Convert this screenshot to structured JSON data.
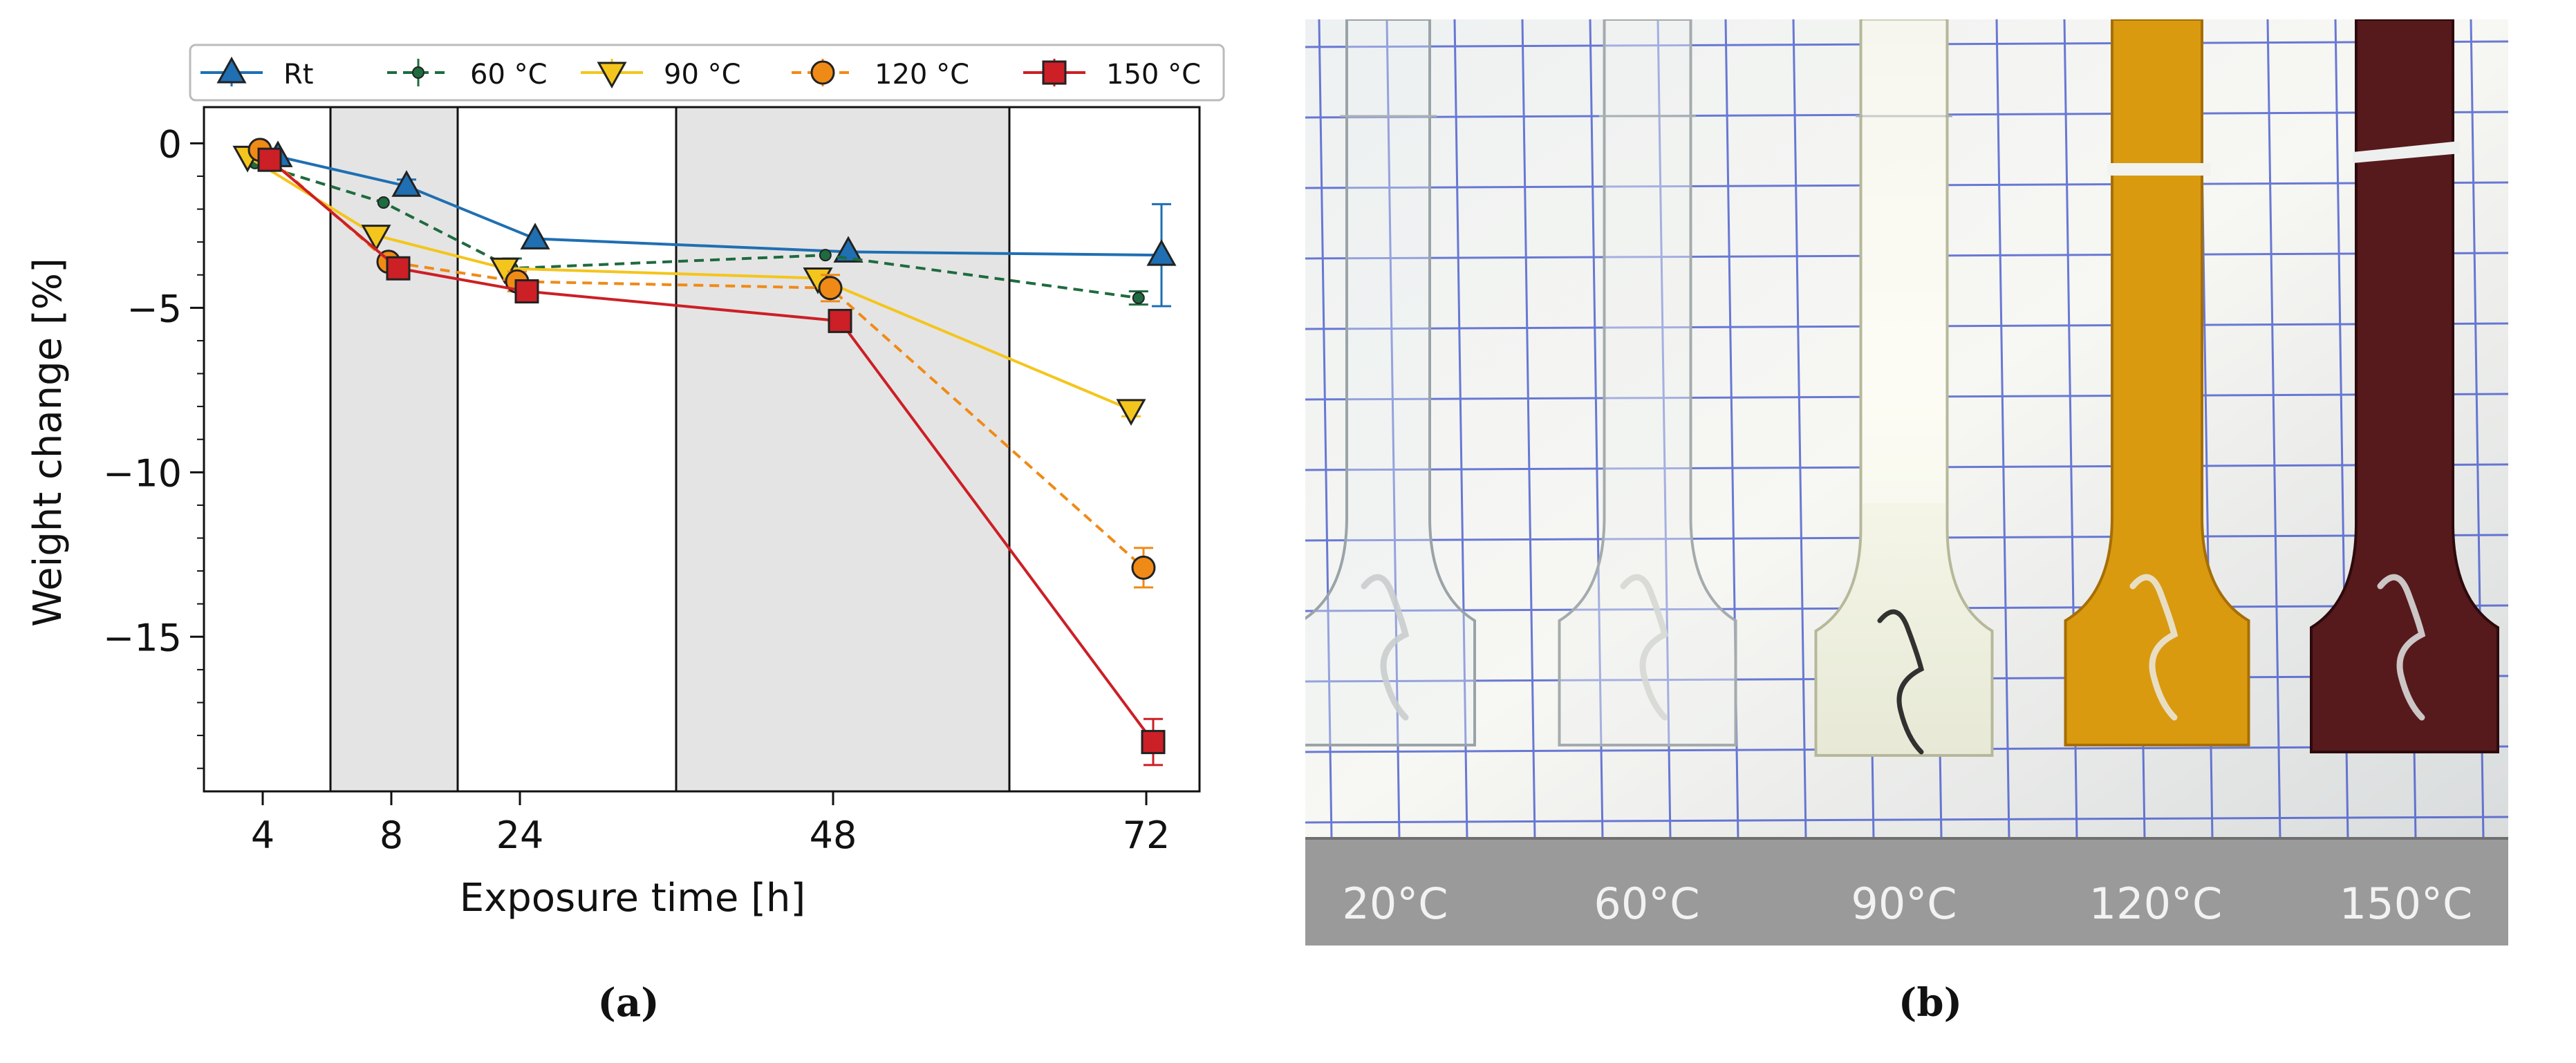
{
  "chart_data": {
    "type": "line",
    "xlabel": "Exposure time [h]",
    "ylabel": "Weight change [%]",
    "x_ticks": [
      "4",
      "8",
      "24",
      "48",
      "72"
    ],
    "y_ticks": [
      0,
      -5,
      -10,
      -15
    ],
    "ylim": [
      -19.7,
      1.1
    ],
    "legend_placement": "top",
    "shaded_bands": [
      [
        "8",
        "24"
      ],
      [
        "48",
        "72"
      ]
    ],
    "series": [
      {
        "name": "Rt",
        "marker": "triangle-up",
        "line": "solid",
        "color": "#1f6fb2",
        "points": [
          {
            "x": "4",
            "y": -0.4
          },
          {
            "x": "8",
            "y": -1.3,
            "err": 0.2
          },
          {
            "x": "24",
            "y": -2.9
          },
          {
            "x": "48",
            "y": -3.3
          },
          {
            "x": "72",
            "y": -3.4,
            "err": 1.55
          }
        ]
      },
      {
        "name": "60 °C",
        "marker": "circle-small",
        "line": "dashed",
        "color": "#1e6b3f",
        "points": [
          {
            "x": "4",
            "y": -0.6
          },
          {
            "x": "8",
            "y": -1.8
          },
          {
            "x": "24",
            "y": -3.8,
            "err": 0.3
          },
          {
            "x": "48",
            "y": -3.4
          },
          {
            "x": "72",
            "y": -4.7,
            "err": 0.2
          }
        ]
      },
      {
        "name": "90 °C",
        "marker": "triangle-down",
        "line": "solid",
        "color": "#f4c51c",
        "points": [
          {
            "x": "4",
            "y": -0.4
          },
          {
            "x": "8",
            "y": -2.8
          },
          {
            "x": "24",
            "y": -3.8
          },
          {
            "x": "48",
            "y": -4.1
          },
          {
            "x": "72",
            "y": -8.1,
            "err": 0.2
          }
        ]
      },
      {
        "name": "120 °C",
        "marker": "circle",
        "line": "dashed",
        "color": "#f08a17",
        "points": [
          {
            "x": "4",
            "y": -0.2
          },
          {
            "x": "8",
            "y": -3.6
          },
          {
            "x": "24",
            "y": -4.2,
            "err": 0.3
          },
          {
            "x": "48",
            "y": -4.4,
            "err": 0.4
          },
          {
            "x": "72",
            "y": -12.9,
            "err": 0.6
          }
        ]
      },
      {
        "name": "150 °C",
        "marker": "square",
        "line": "solid",
        "color": "#cc1f26",
        "points": [
          {
            "x": "4",
            "y": -0.5
          },
          {
            "x": "8",
            "y": -3.8
          },
          {
            "x": "24",
            "y": -4.5,
            "err": 0.3
          },
          {
            "x": "48",
            "y": -5.4,
            "err": 0.3
          },
          {
            "x": "72",
            "y": -18.2,
            "err": 0.7
          }
        ]
      }
    ]
  },
  "photo": {
    "temperature_labels": [
      "20°C",
      "60°C",
      "90°C",
      "120°C",
      "150°C"
    ]
  },
  "captions": {
    "a": "(a)",
    "b": "(b)"
  }
}
